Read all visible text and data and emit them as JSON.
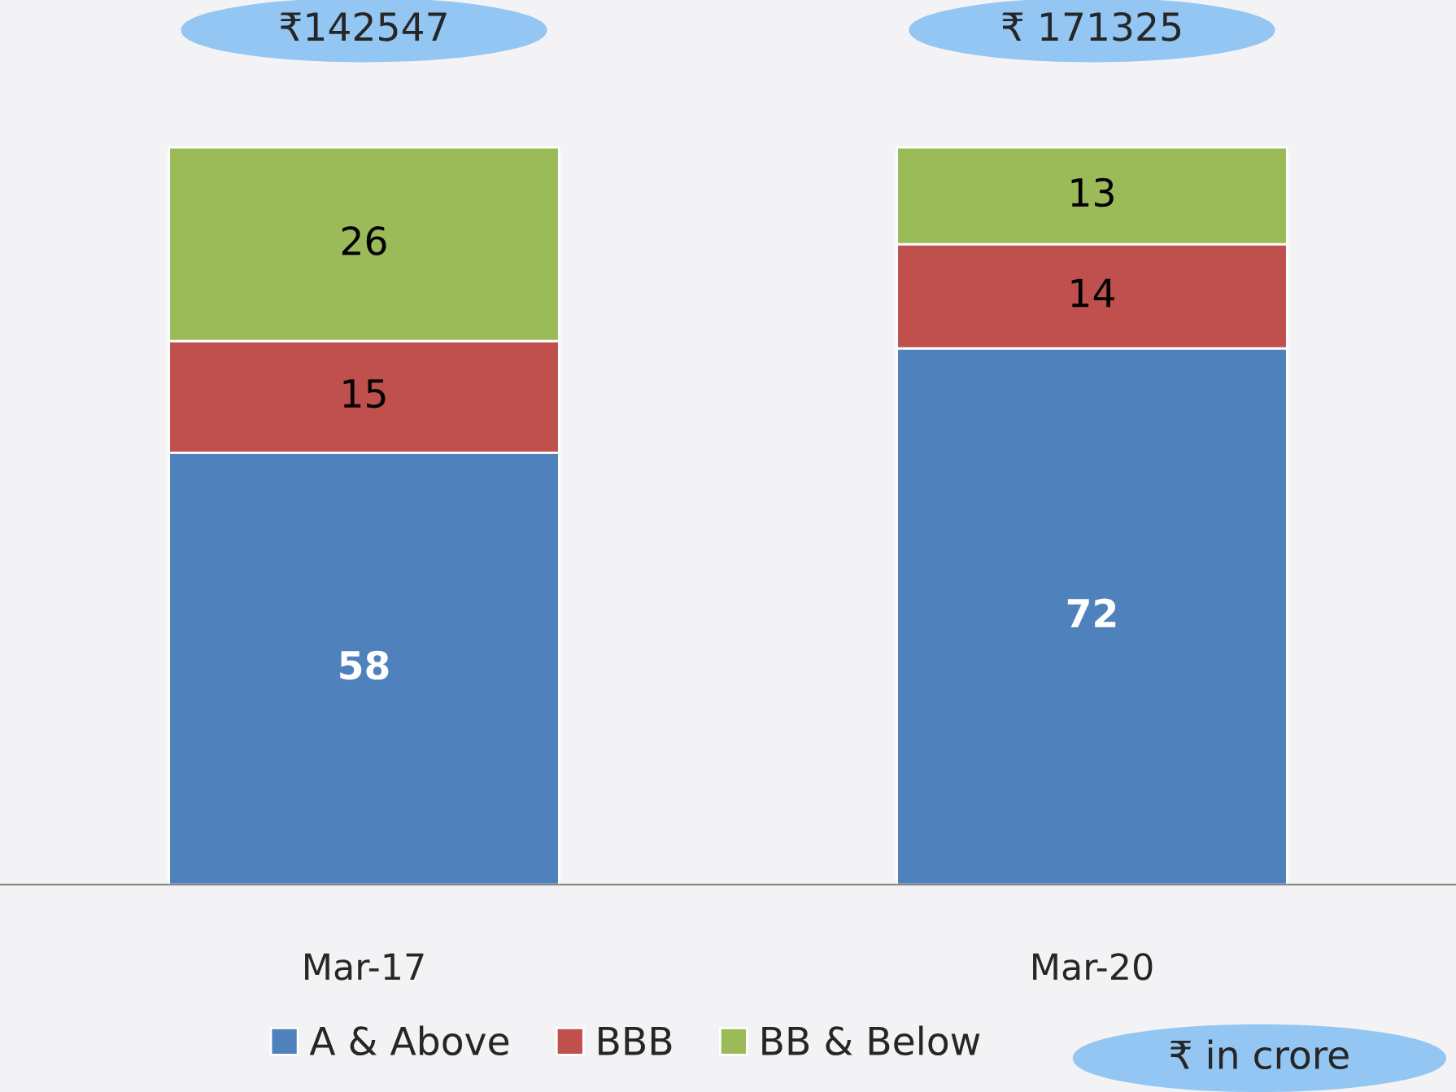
{
  "chart_data": {
    "type": "bar",
    "stacked": true,
    "categories": [
      "Mar-17",
      "Mar-20"
    ],
    "series": [
      {
        "name": "A & Above",
        "color": "#4f81bd",
        "values": [
          58,
          72
        ]
      },
      {
        "name": "BBB",
        "color": "#c0504d",
        "values": [
          15,
          14
        ]
      },
      {
        "name": "BB & Below",
        "color": "#9bbb59",
        "values": [
          26,
          13
        ]
      }
    ],
    "data_labels": true,
    "annotations": [
      "₹142547",
      "₹ 171325",
      "₹ in crore"
    ],
    "legend": "bottom",
    "grid": false
  }
}
